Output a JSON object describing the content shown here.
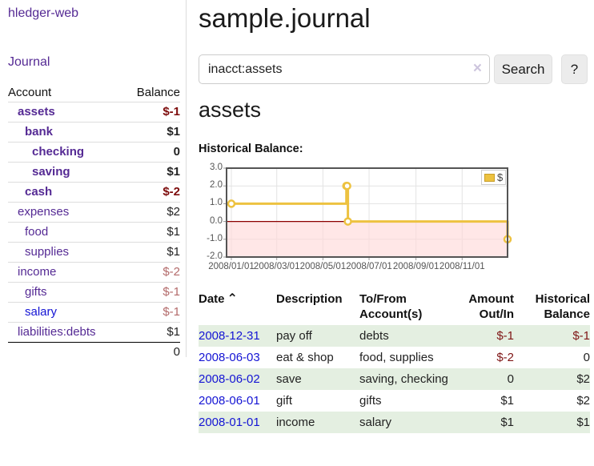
{
  "colors": {
    "link_purple": "#552a94",
    "link_blue": "#1414d4",
    "negative_strong": "#7d0c0c",
    "negative_soft": "#b36a6a",
    "negative_table": "#7f1616",
    "positive_row_green": "#e4efe1",
    "series_gold": "#edc240"
  },
  "sidebar": {
    "app_title": "hledger-web",
    "nav": {
      "journal": "Journal"
    },
    "accounts": {
      "col_account": "Account",
      "col_balance": "Balance",
      "rows": [
        {
          "name": "assets",
          "balance": "$-1",
          "indent": 0,
          "emphasis": true
        },
        {
          "name": "bank",
          "balance": "$1",
          "indent": 1,
          "emphasis": true
        },
        {
          "name": "checking",
          "balance": "0",
          "indent": 2,
          "emphasis": true
        },
        {
          "name": "saving",
          "balance": "$1",
          "indent": 2,
          "emphasis": true
        },
        {
          "name": "cash",
          "balance": "$-2",
          "indent": 1,
          "emphasis": true
        },
        {
          "name": "expenses",
          "balance": "$2",
          "indent": 0
        },
        {
          "name": "food",
          "balance": "$1",
          "indent": 1
        },
        {
          "name": "supplies",
          "balance": "$1",
          "indent": 1
        },
        {
          "name": "income",
          "balance": "$-2",
          "indent": 0
        },
        {
          "name": "gifts",
          "balance": "$-1",
          "indent": 1
        },
        {
          "name": "salary",
          "balance": "$-1",
          "indent": 1,
          "link_style": "blue"
        },
        {
          "name": "liabilities:debts",
          "balance": "$1",
          "indent": 0
        }
      ],
      "total": "0"
    }
  },
  "main": {
    "page_title": "sample.journal",
    "search": {
      "value": "inacct:assets",
      "clear_icon": "×",
      "button_label": "Search",
      "help_label": "?"
    },
    "account_heading": "assets"
  },
  "chart_data": {
    "type": "line",
    "step": true,
    "title": "Historical Balance:",
    "series": [
      {
        "name": "$",
        "color": "#edc240",
        "points": [
          [
            "2008-01-01",
            1
          ],
          [
            "2008-06-01",
            2
          ],
          [
            "2008-06-02",
            2
          ],
          [
            "2008-06-03",
            0
          ],
          [
            "2008-12-31",
            -1
          ]
        ]
      }
    ],
    "x_ticks": [
      "2008/01/01",
      "2008/03/01",
      "2008/05/01",
      "2008/07/01",
      "2008/09/01",
      "2008/11/01"
    ],
    "y_ticks": [
      3.0,
      2.0,
      1.0,
      0.0,
      -1.0,
      -2.0
    ],
    "xlim": [
      "2008-01-01",
      "2008-12-31"
    ],
    "ylim": [
      -2,
      3
    ],
    "grid": true,
    "legend_position": "top-right",
    "negative_region_fill": "#ffd9d9",
    "zero_line_color": "#8b0000"
  },
  "register": {
    "headers": [
      {
        "label": "Date",
        "sort_indicator": "⌃"
      },
      {
        "label": "Description"
      },
      {
        "label": "To/From Account(s)"
      },
      {
        "label": "Amount Out/In"
      },
      {
        "label": "Historical Balance"
      }
    ],
    "rows": [
      {
        "date": "2008-12-31",
        "description": "pay off",
        "accounts": "debts",
        "amount": "$-1",
        "balance": "$-1"
      },
      {
        "date": "2008-06-03",
        "description": "eat & shop",
        "accounts": "food, supplies",
        "amount": "$-2",
        "balance": "0"
      },
      {
        "date": "2008-06-02",
        "description": "save",
        "accounts": "saving, checking",
        "amount": "0",
        "balance": "$2"
      },
      {
        "date": "2008-06-01",
        "description": "gift",
        "accounts": "gifts",
        "amount": "$1",
        "balance": "$2"
      },
      {
        "date": "2008-01-01",
        "description": "income",
        "accounts": "salary",
        "amount": "$1",
        "balance": "$1"
      }
    ]
  }
}
